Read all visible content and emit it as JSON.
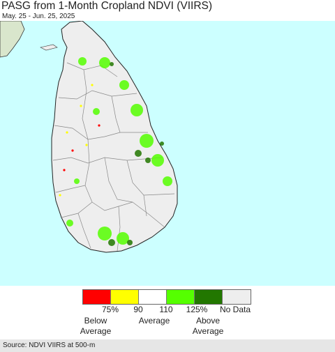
{
  "title": "PASG from 1-Month Cropland NDVI (VIIRS)",
  "subtitle": "May. 25 - Jun. 25, 2025",
  "map": {
    "region_icon": "sri-lanka-map",
    "ocean_color": "#ccffff",
    "land_color": "#eeeeee",
    "mainland_color": "#d9e6cc"
  },
  "legend": {
    "colors": [
      "#ff0000",
      "#ffff00",
      "#ffffff",
      "#55ff00",
      "#227700",
      "#eeeeee"
    ],
    "ticks": [
      "75%",
      "90",
      "110",
      "125%",
      "No Data"
    ],
    "categories": [
      {
        "line1": "Below",
        "line2": "Average"
      },
      {
        "line1": "Average",
        "line2": ""
      },
      {
        "line1": "Above",
        "line2": "Average"
      }
    ]
  },
  "source": "Source: NDVI VIIRS at 500-m"
}
